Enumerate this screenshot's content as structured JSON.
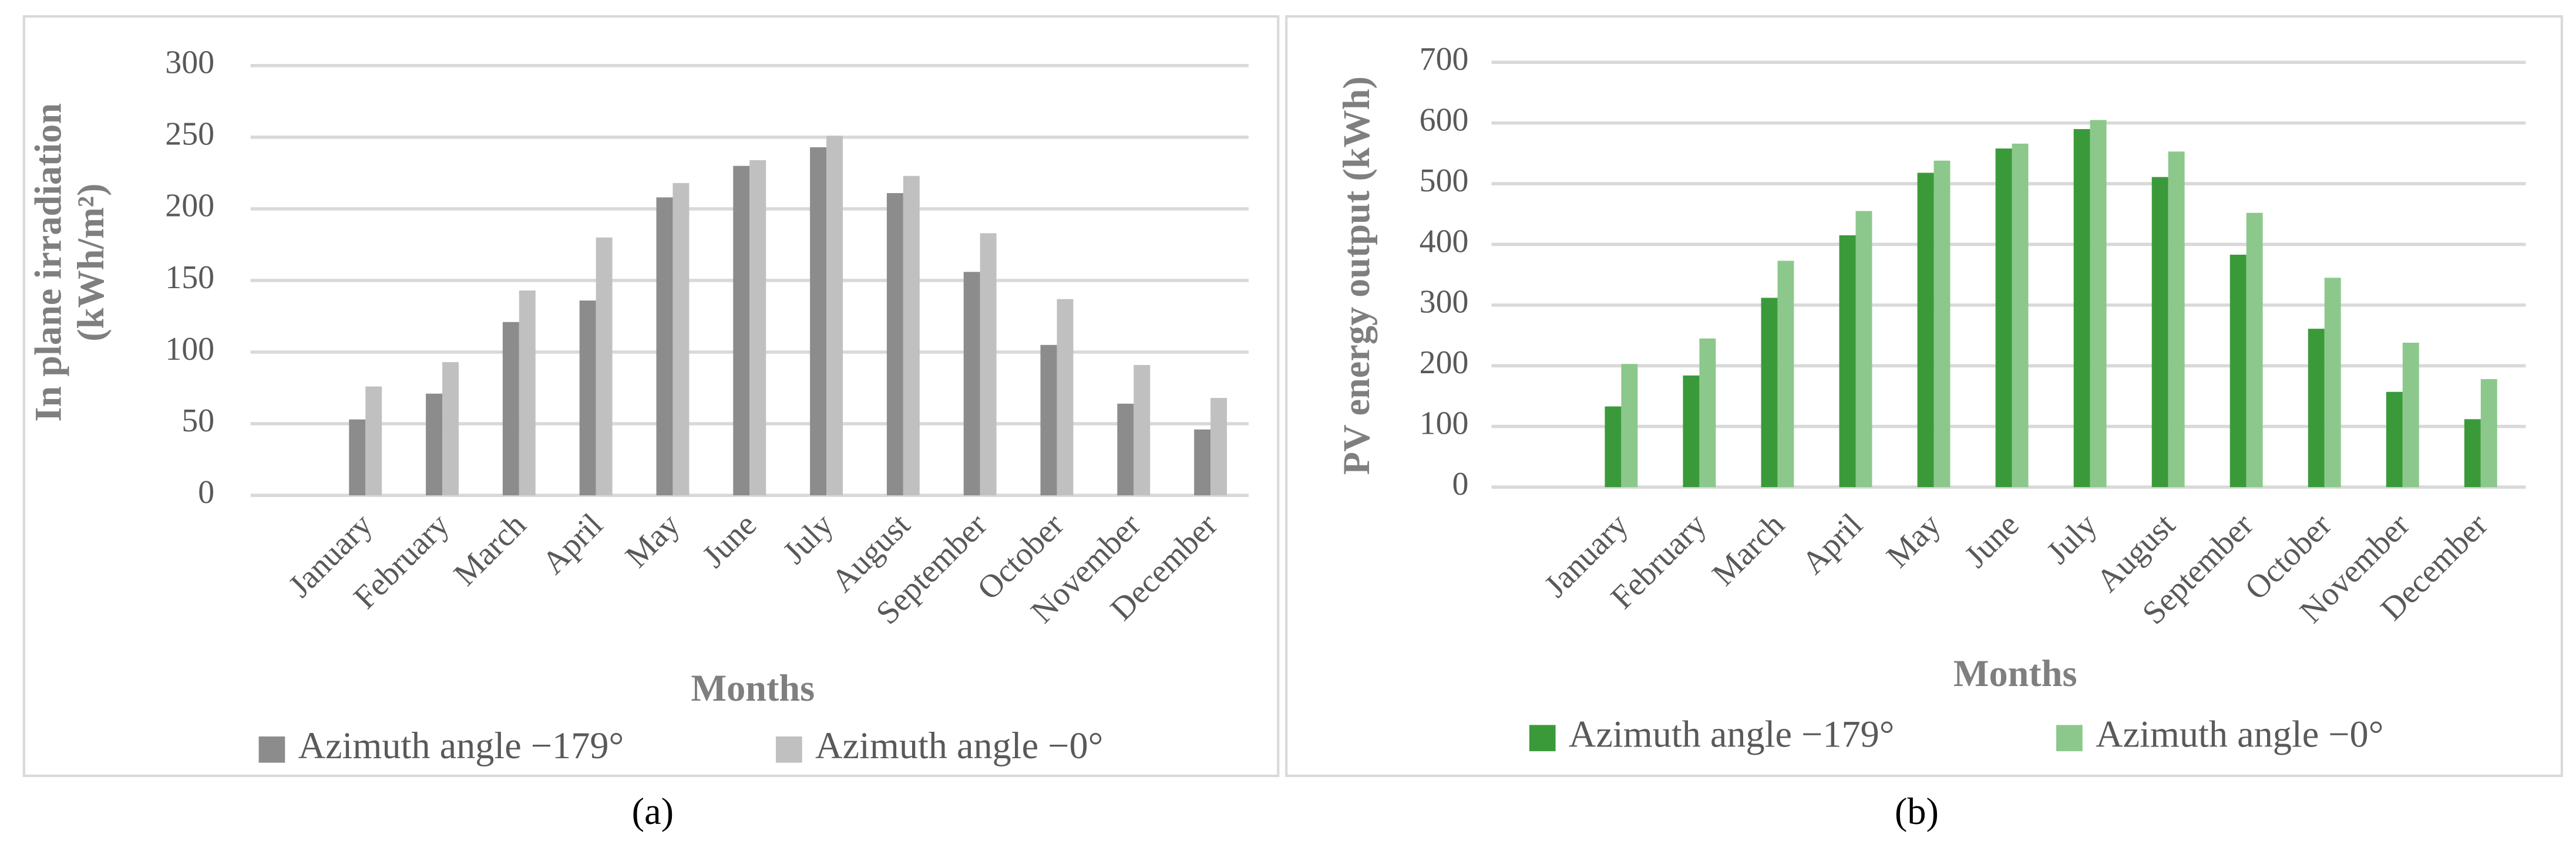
{
  "chart_data": [
    {
      "type": "bar",
      "panel_label": "(a)",
      "y_label": [
        "In plane irradiation",
        "(kWh/m²)"
      ],
      "x_label": "Months",
      "categories": [
        "January",
        "February",
        "March",
        "April",
        "May",
        "June",
        "July",
        "August",
        "September",
        "October",
        "November",
        "December"
      ],
      "series": [
        {
          "name": "Azimuth angle −179°",
          "color": "#8c8c8c",
          "values": [
            53,
            71,
            121,
            136,
            208,
            230,
            243,
            211,
            156,
            105,
            64,
            46
          ]
        },
        {
          "name": "Azimuth angle −0°",
          "color": "#c0c0c0",
          "values": [
            76,
            93,
            143,
            180,
            218,
            234,
            251,
            223,
            183,
            137,
            91,
            68
          ]
        }
      ],
      "ylim": [
        0,
        300
      ],
      "yticks": [
        0,
        50,
        100,
        150,
        200,
        250,
        300
      ],
      "grid": true
    },
    {
      "type": "bar",
      "panel_label": "(b)",
      "y_label": [
        "PV energy output (kWh)"
      ],
      "x_label": "Months",
      "categories": [
        "January",
        "February",
        "March",
        "April",
        "May",
        "June",
        "July",
        "August",
        "September",
        "October",
        "November",
        "December"
      ],
      "series": [
        {
          "name": "Azimuth angle −179°",
          "color": "#3a9a3a",
          "values": [
            133,
            184,
            312,
            415,
            518,
            558,
            590,
            511,
            383,
            261,
            157,
            112
          ]
        },
        {
          "name": "Azimuth angle −0°",
          "color": "#8cc88c",
          "values": [
            203,
            245,
            373,
            455,
            538,
            566,
            605,
            553,
            452,
            345,
            238,
            178
          ]
        }
      ],
      "ylim": [
        0,
        700
      ],
      "yticks": [
        0,
        100,
        200,
        300,
        400,
        500,
        600,
        700
      ],
      "grid": true
    }
  ]
}
